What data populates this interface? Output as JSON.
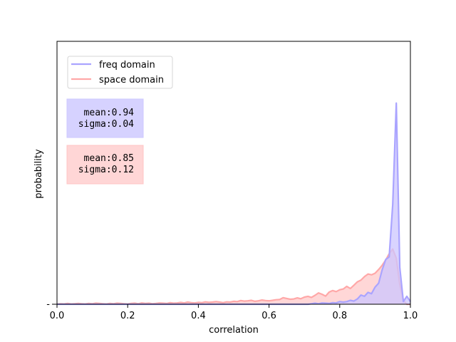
{
  "chart_data": {
    "type": "area",
    "title": "",
    "xlabel": "correlation",
    "ylabel": "probability",
    "xlim": [
      0.0,
      1.0
    ],
    "ylim": [
      0.0,
      0.1
    ],
    "x_ticks": [
      "0.0",
      "0.2",
      "0.4",
      "0.6",
      "0.8",
      "1.0"
    ],
    "y_tick_label": "-",
    "grid": false,
    "legend_position": "top-left",
    "x": [
      0.0,
      0.01,
      0.02,
      0.03,
      0.04,
      0.05,
      0.06,
      0.07,
      0.08,
      0.09,
      0.1,
      0.11,
      0.12,
      0.13,
      0.14,
      0.15,
      0.16,
      0.17,
      0.18,
      0.19,
      0.2,
      0.21,
      0.22,
      0.23,
      0.24,
      0.25,
      0.26,
      0.27,
      0.28,
      0.29,
      0.3,
      0.31,
      0.32,
      0.33,
      0.34,
      0.35,
      0.36,
      0.37,
      0.38,
      0.39,
      0.4,
      0.41,
      0.42,
      0.43,
      0.44,
      0.45,
      0.46,
      0.47,
      0.48,
      0.49,
      0.5,
      0.51,
      0.52,
      0.53,
      0.54,
      0.55,
      0.56,
      0.57,
      0.58,
      0.59,
      0.6,
      0.61,
      0.62,
      0.63,
      0.64,
      0.65,
      0.66,
      0.67,
      0.68,
      0.69,
      0.7,
      0.71,
      0.72,
      0.73,
      0.74,
      0.75,
      0.76,
      0.77,
      0.78,
      0.79,
      0.8,
      0.81,
      0.82,
      0.83,
      0.84,
      0.85,
      0.86,
      0.87,
      0.88,
      0.89,
      0.9,
      0.91,
      0.92,
      0.93,
      0.94,
      0.95,
      0.96,
      0.97,
      0.98,
      0.99,
      1.0
    ],
    "series": [
      {
        "name": "freq domain",
        "color": "#aaa4ff",
        "fill": "#ccc6ff",
        "values": [
          0,
          0,
          0,
          0,
          0,
          0,
          0,
          0,
          0,
          0,
          0,
          0,
          0,
          0,
          0,
          0,
          0,
          0,
          0,
          0,
          0,
          0,
          0,
          0,
          0,
          0,
          0,
          0,
          0,
          0,
          0,
          0,
          0,
          0,
          0,
          0,
          0,
          0,
          0,
          0,
          0,
          0,
          0,
          0,
          0,
          0,
          0,
          0,
          0,
          0,
          0,
          0,
          0,
          0,
          0,
          0,
          0,
          0,
          0,
          0,
          0,
          0,
          0,
          0,
          0,
          0,
          0,
          0,
          0,
          0,
          0,
          0,
          0.0002,
          0.0004,
          0.0002,
          0.0005,
          0.0004,
          0.0003,
          0.0006,
          0.0005,
          0.001,
          0.0008,
          0.001,
          0.0015,
          0.0012,
          0.002,
          0.0035,
          0.003,
          0.0045,
          0.004,
          0.0065,
          0.008,
          0.013,
          0.017,
          0.018,
          0.038,
          0.0765,
          0.014,
          0.001,
          0.003,
          0.001
        ]
      },
      {
        "name": "space domain",
        "color": "#ffa8a8",
        "fill": "#ffcaca",
        "values": [
          0,
          0.0002,
          0.0001,
          0.0003,
          0.0001,
          0.0002,
          0.0003,
          0.0002,
          0.0001,
          0.0003,
          0.0002,
          0.0004,
          0.0003,
          0.0002,
          0.0001,
          0.0003,
          0.0002,
          0.0004,
          0.0003,
          0.0002,
          0.0001,
          0.0003,
          0.0004,
          0.0002,
          0.0005,
          0.0003,
          0.0004,
          0.0002,
          0.0003,
          0.0005,
          0.0004,
          0.0003,
          0.0006,
          0.0004,
          0.0005,
          0.0007,
          0.0005,
          0.0008,
          0.0006,
          0.0005,
          0.0007,
          0.0006,
          0.0009,
          0.0007,
          0.0008,
          0.001,
          0.0008,
          0.0006,
          0.0009,
          0.0008,
          0.0011,
          0.001,
          0.0014,
          0.0012,
          0.0013,
          0.0015,
          0.0011,
          0.0013,
          0.0016,
          0.0014,
          0.0013,
          0.0015,
          0.0017,
          0.0018,
          0.0025,
          0.0022,
          0.0019,
          0.002,
          0.0024,
          0.0021,
          0.0027,
          0.003,
          0.0026,
          0.0034,
          0.0043,
          0.0038,
          0.0031,
          0.0046,
          0.0052,
          0.0048,
          0.0055,
          0.0058,
          0.0068,
          0.006,
          0.0072,
          0.0085,
          0.0092,
          0.0105,
          0.0115,
          0.0112,
          0.0118,
          0.0132,
          0.0148,
          0.0168,
          0.0192,
          0.021,
          0.0175,
          0.0075,
          0.0015,
          0,
          0
        ]
      }
    ]
  },
  "stats": [
    {
      "label": "mean:0.94\nsigma:0.04",
      "line1": " mean:0.94",
      "line2": "sigma:0.04",
      "bg": "#d6d2ff",
      "border": "#cdc8ff"
    },
    {
      "label": "mean:0.85\nsigma:0.12",
      "line1": " mean:0.85",
      "line2": "sigma:0.12",
      "bg": "#ffd6d6",
      "border": "#ffc4c4"
    }
  ]
}
